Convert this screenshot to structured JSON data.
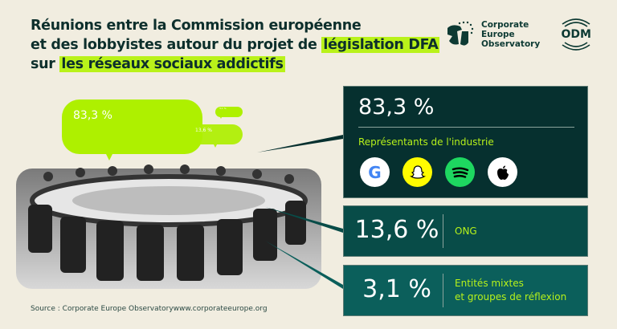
{
  "title": {
    "line1": "Réunions entre la Commission européenne",
    "line2_pre": "et des lobbyistes autour du projet de ",
    "line2_hl": "législation DFA",
    "line3_pre": "sur ",
    "line3_hl": "les réseaux sociaux addictifs"
  },
  "logos": {
    "ceo": [
      "Corporate",
      "Europe",
      "Observatory"
    ],
    "odm": "ODM"
  },
  "colors": {
    "accent": "#b9f21a",
    "dark": "#06302f",
    "mid": "#084c48",
    "teal": "#0b5f5b",
    "background": "#f1ede0"
  },
  "chart_data": {
    "type": "bubble",
    "categories": [
      "Représentants de l'industrie",
      "ONG",
      "Entités mixtes et groupes de réflexion"
    ],
    "values": [
      83.3,
      13.6,
      3.1
    ],
    "unit": "%",
    "labels": [
      "83,3 %",
      "13,6 %",
      "3,1 %"
    ]
  },
  "boxes": [
    {
      "value": "83,3 %",
      "label": "Représentants de l'industrie",
      "icons": [
        "google-icon",
        "snapchat-icon",
        "spotify-icon",
        "apple-icon"
      ]
    },
    {
      "value": "13,6 %",
      "label": "ONG"
    },
    {
      "value": "3,1 %",
      "label_line1": "Entités mixtes",
      "label_line2": "et groupes de réflexion"
    }
  ],
  "source": "Source : Corporate Europe Observatorywww.corporateeurope.org"
}
